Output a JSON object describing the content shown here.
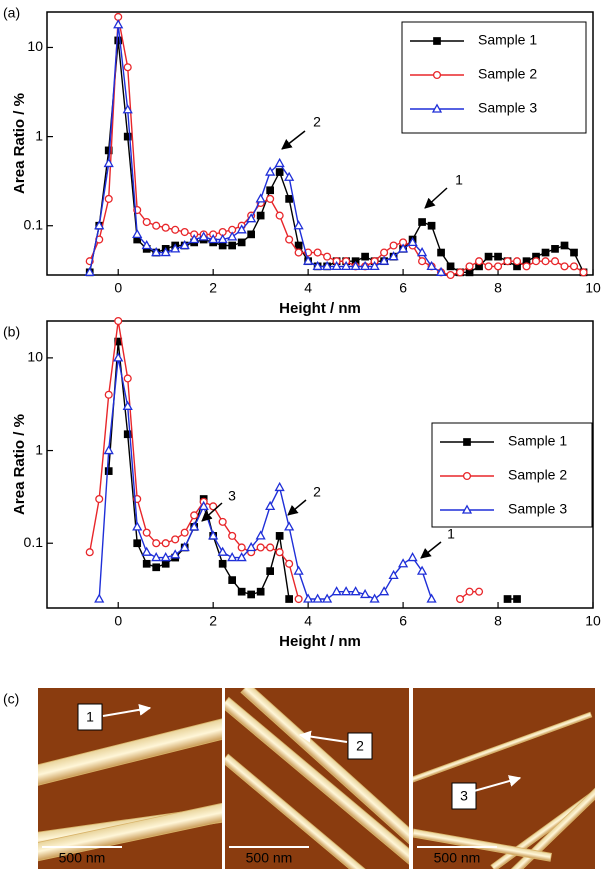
{
  "chart_data": [
    {
      "type": "line",
      "panel_label": "(a)",
      "x_label": "Height / nm",
      "y_label": "Area Ratio / %",
      "xlim": [
        -1.5,
        10
      ],
      "xticks": [
        0,
        2,
        4,
        6,
        8,
        10
      ],
      "ylim": [
        0.028,
        25
      ],
      "yticks": [
        0.1,
        1,
        10
      ],
      "log_y": true,
      "legend": "upper right",
      "annotations": [
        "2",
        "1"
      ],
      "x": [
        -0.6,
        -0.4,
        -0.2,
        0,
        0.2,
        0.4,
        0.6,
        0.8,
        1.0,
        1.2,
        1.4,
        1.6,
        1.8,
        2.0,
        2.2,
        2.4,
        2.6,
        2.8,
        3.0,
        3.2,
        3.4,
        3.6,
        3.8,
        4.0,
        4.2,
        4.4,
        4.6,
        4.8,
        5.0,
        5.2,
        5.4,
        5.6,
        5.8,
        6.0,
        6.2,
        6.4,
        6.6,
        6.8,
        7.0,
        7.2,
        7.4,
        7.6,
        7.8,
        8.0,
        8.2,
        8.4,
        8.6,
        8.8,
        9.0,
        9.2,
        9.4,
        9.6,
        9.8
      ],
      "series": [
        {
          "name": "Sample 1",
          "color": "#000000",
          "marker": "square",
          "values": [
            0.03,
            0.1,
            0.7,
            12,
            1,
            0.07,
            0.055,
            0.05,
            0.055,
            0.06,
            0.06,
            0.065,
            0.07,
            0.065,
            0.06,
            0.06,
            0.065,
            0.08,
            0.13,
            0.25,
            0.4,
            0.2,
            0.06,
            0.04,
            0.035,
            0.035,
            0.04,
            0.04,
            0.04,
            0.045,
            0.04,
            0.04,
            0.045,
            0.055,
            0.07,
            0.11,
            0.1,
            0.05,
            0.035,
            0.03,
            0.03,
            0.035,
            0.045,
            0.045,
            0.04,
            0.035,
            0.04,
            0.045,
            0.05,
            0.055,
            0.06,
            0.05,
            0.03
          ]
        },
        {
          "name": "Sample 2",
          "color": "#e8262a",
          "marker": "circle",
          "values": [
            0.04,
            0.07,
            0.2,
            22,
            6,
            0.15,
            0.11,
            0.1,
            0.095,
            0.09,
            0.085,
            0.08,
            0.08,
            0.08,
            0.085,
            0.09,
            0.1,
            0.13,
            0.18,
            0.2,
            0.13,
            0.07,
            0.05,
            0.05,
            0.05,
            0.045,
            0.04,
            0.04,
            0.035,
            0.035,
            0.04,
            0.05,
            0.06,
            0.065,
            0.06,
            0.04,
            0.035,
            0.03,
            0.028,
            0.03,
            0.035,
            0.04,
            0.035,
            0.035,
            0.04,
            0.04,
            0.035,
            0.04,
            0.04,
            0.04,
            0.035,
            0.035,
            0.03
          ]
        },
        {
          "name": "Sample 3",
          "color": "#1f2fd8",
          "marker": "triangle",
          "values": [
            0.03,
            0.1,
            0.5,
            18,
            2,
            0.08,
            0.06,
            0.05,
            0.05,
            0.055,
            0.06,
            0.07,
            0.075,
            0.07,
            0.07,
            0.075,
            0.09,
            0.12,
            0.2,
            0.4,
            0.5,
            0.35,
            0.1,
            0.04,
            0.035,
            0.035,
            0.035,
            0.035,
            0.035,
            0.035,
            0.035,
            0.04,
            0.045,
            0.055,
            0.065,
            0.05,
            0.035,
            0.03,
            null,
            null,
            null,
            null,
            null,
            null,
            null,
            null,
            null,
            null,
            null,
            null,
            null,
            null,
            null
          ]
        }
      ]
    },
    {
      "type": "line",
      "panel_label": "(b)",
      "x_label": "Height / nm",
      "y_label": "Area Ratio / %",
      "xlim": [
        -1.5,
        10
      ],
      "xticks": [
        0,
        2,
        4,
        6,
        8,
        10
      ],
      "ylim": [
        0.02,
        25
      ],
      "yticks": [
        0.1,
        1,
        10
      ],
      "log_y": true,
      "legend": "upper right",
      "annotations": [
        "3",
        "2",
        "1"
      ],
      "x": [
        -0.6,
        -0.4,
        -0.2,
        0,
        0.2,
        0.4,
        0.6,
        0.8,
        1.0,
        1.2,
        1.4,
        1.6,
        1.8,
        2.0,
        2.2,
        2.4,
        2.6,
        2.8,
        3.0,
        3.2,
        3.4,
        3.6,
        3.8,
        4.0,
        4.2,
        4.4,
        4.6,
        4.8,
        5.0,
        5.2,
        5.4,
        5.6,
        5.8,
        6.0,
        6.2,
        6.4,
        6.6,
        6.8,
        7.0,
        7.2,
        7.4,
        7.6,
        7.8,
        8.0,
        8.2,
        8.4
      ],
      "series": [
        {
          "name": "Sample 1",
          "color": "#000000",
          "marker": "square",
          "values": [
            null,
            null,
            0.6,
            15,
            1.5,
            0.1,
            0.06,
            0.055,
            0.06,
            0.07,
            0.09,
            0.15,
            0.3,
            0.12,
            0.06,
            0.04,
            0.03,
            0.028,
            0.03,
            0.05,
            0.12,
            0.025,
            null,
            null,
            null,
            null,
            null,
            null,
            null,
            null,
            null,
            null,
            null,
            null,
            null,
            null,
            null,
            null,
            null,
            null,
            null,
            null,
            null,
            null,
            0.025,
            0.025
          ]
        },
        {
          "name": "Sample 2",
          "color": "#e8262a",
          "marker": "circle",
          "values": [
            0.08,
            0.3,
            4,
            25,
            6,
            0.3,
            0.13,
            0.1,
            0.1,
            0.11,
            0.13,
            0.2,
            0.28,
            0.25,
            0.17,
            0.12,
            0.09,
            0.08,
            0.09,
            0.09,
            0.08,
            0.06,
            0.025,
            null,
            null,
            null,
            null,
            null,
            null,
            null,
            null,
            null,
            null,
            null,
            null,
            null,
            null,
            null,
            null,
            0.025,
            0.03,
            0.03,
            null,
            null,
            null,
            null
          ]
        },
        {
          "name": "Sample 3",
          "color": "#1f2fd8",
          "marker": "triangle",
          "values": [
            null,
            0.025,
            1,
            10,
            3,
            0.15,
            0.08,
            0.07,
            0.07,
            0.075,
            0.09,
            0.15,
            0.25,
            0.12,
            0.08,
            0.07,
            0.07,
            0.09,
            0.12,
            0.25,
            0.4,
            0.15,
            0.05,
            0.025,
            0.025,
            0.025,
            0.03,
            0.03,
            0.03,
            0.028,
            0.025,
            0.03,
            0.045,
            0.06,
            0.07,
            0.05,
            0.025,
            null,
            null,
            null,
            null,
            null,
            null,
            null,
            null,
            null
          ]
        }
      ]
    }
  ],
  "images": {
    "panel_label": "(c)",
    "items": [
      {
        "label": "1",
        "scale_bar": "500 nm"
      },
      {
        "label": "2",
        "scale_bar": "500 nm"
      },
      {
        "label": "3",
        "scale_bar": "500 nm"
      }
    ]
  }
}
